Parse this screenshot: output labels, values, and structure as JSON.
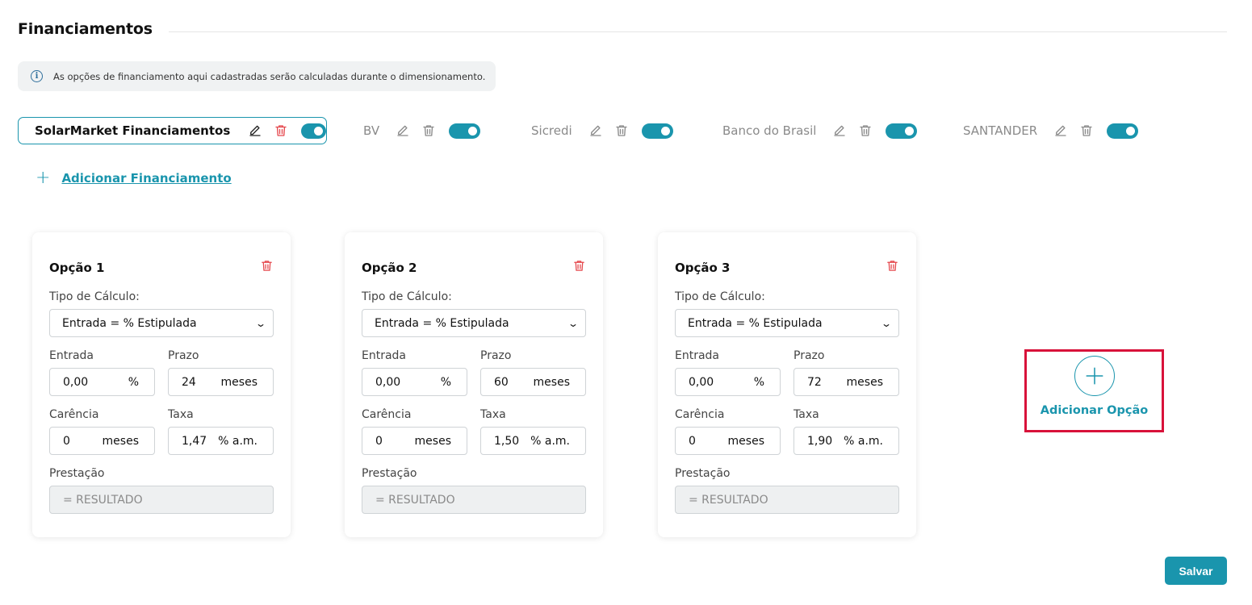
{
  "page": {
    "title": "Financiamentos"
  },
  "info": {
    "text": "As opções de financiamento aqui cadastradas serão calculadas durante o dimensionamento."
  },
  "tabs": [
    {
      "name": "SolarMarket Financiamentos",
      "active": true,
      "enabled": true
    },
    {
      "name": "BV",
      "active": false,
      "enabled": true
    },
    {
      "name": "Sicredi",
      "active": false,
      "enabled": true
    },
    {
      "name": "Banco do Brasil",
      "active": false,
      "enabled": true
    },
    {
      "name": "SANTANDER",
      "active": false,
      "enabled": true
    }
  ],
  "add_financing_label": "Adicionar Financiamento",
  "labels": {
    "calc_type": "Tipo de Cálculo:",
    "entrada": "Entrada",
    "prazo": "Prazo",
    "carencia": "Carência",
    "taxa": "Taxa",
    "prestacao": "Prestação"
  },
  "options": [
    {
      "title": "Opção 1",
      "calc_type": "Entrada = % Estipulada",
      "entrada": "0,00",
      "entrada_unit": "%",
      "prazo": "24",
      "prazo_unit": "meses",
      "carencia": "0",
      "carencia_unit": "meses",
      "taxa": "1,47",
      "taxa_unit": "% a.m.",
      "prestacao_placeholder": "= RESULTADO"
    },
    {
      "title": "Opção 2",
      "calc_type": "Entrada = % Estipulada",
      "entrada": "0,00",
      "entrada_unit": "%",
      "prazo": "60",
      "prazo_unit": "meses",
      "carencia": "0",
      "carencia_unit": "meses",
      "taxa": "1,50",
      "taxa_unit": "% a.m.",
      "prestacao_placeholder": "= RESULTADO"
    },
    {
      "title": "Opção 3",
      "calc_type": "Entrada = % Estipulada",
      "entrada": "0,00",
      "entrada_unit": "%",
      "prazo": "72",
      "prazo_unit": "meses",
      "carencia": "0",
      "carencia_unit": "meses",
      "taxa": "1,90",
      "taxa_unit": "% a.m.",
      "prestacao_placeholder": "= RESULTADO"
    }
  ],
  "add_option_label": "Adicionar Opção",
  "save_label": "Salvar",
  "colors": {
    "accent": "#1a95ad",
    "danger": "#e5484d",
    "highlight": "#d8123a"
  }
}
